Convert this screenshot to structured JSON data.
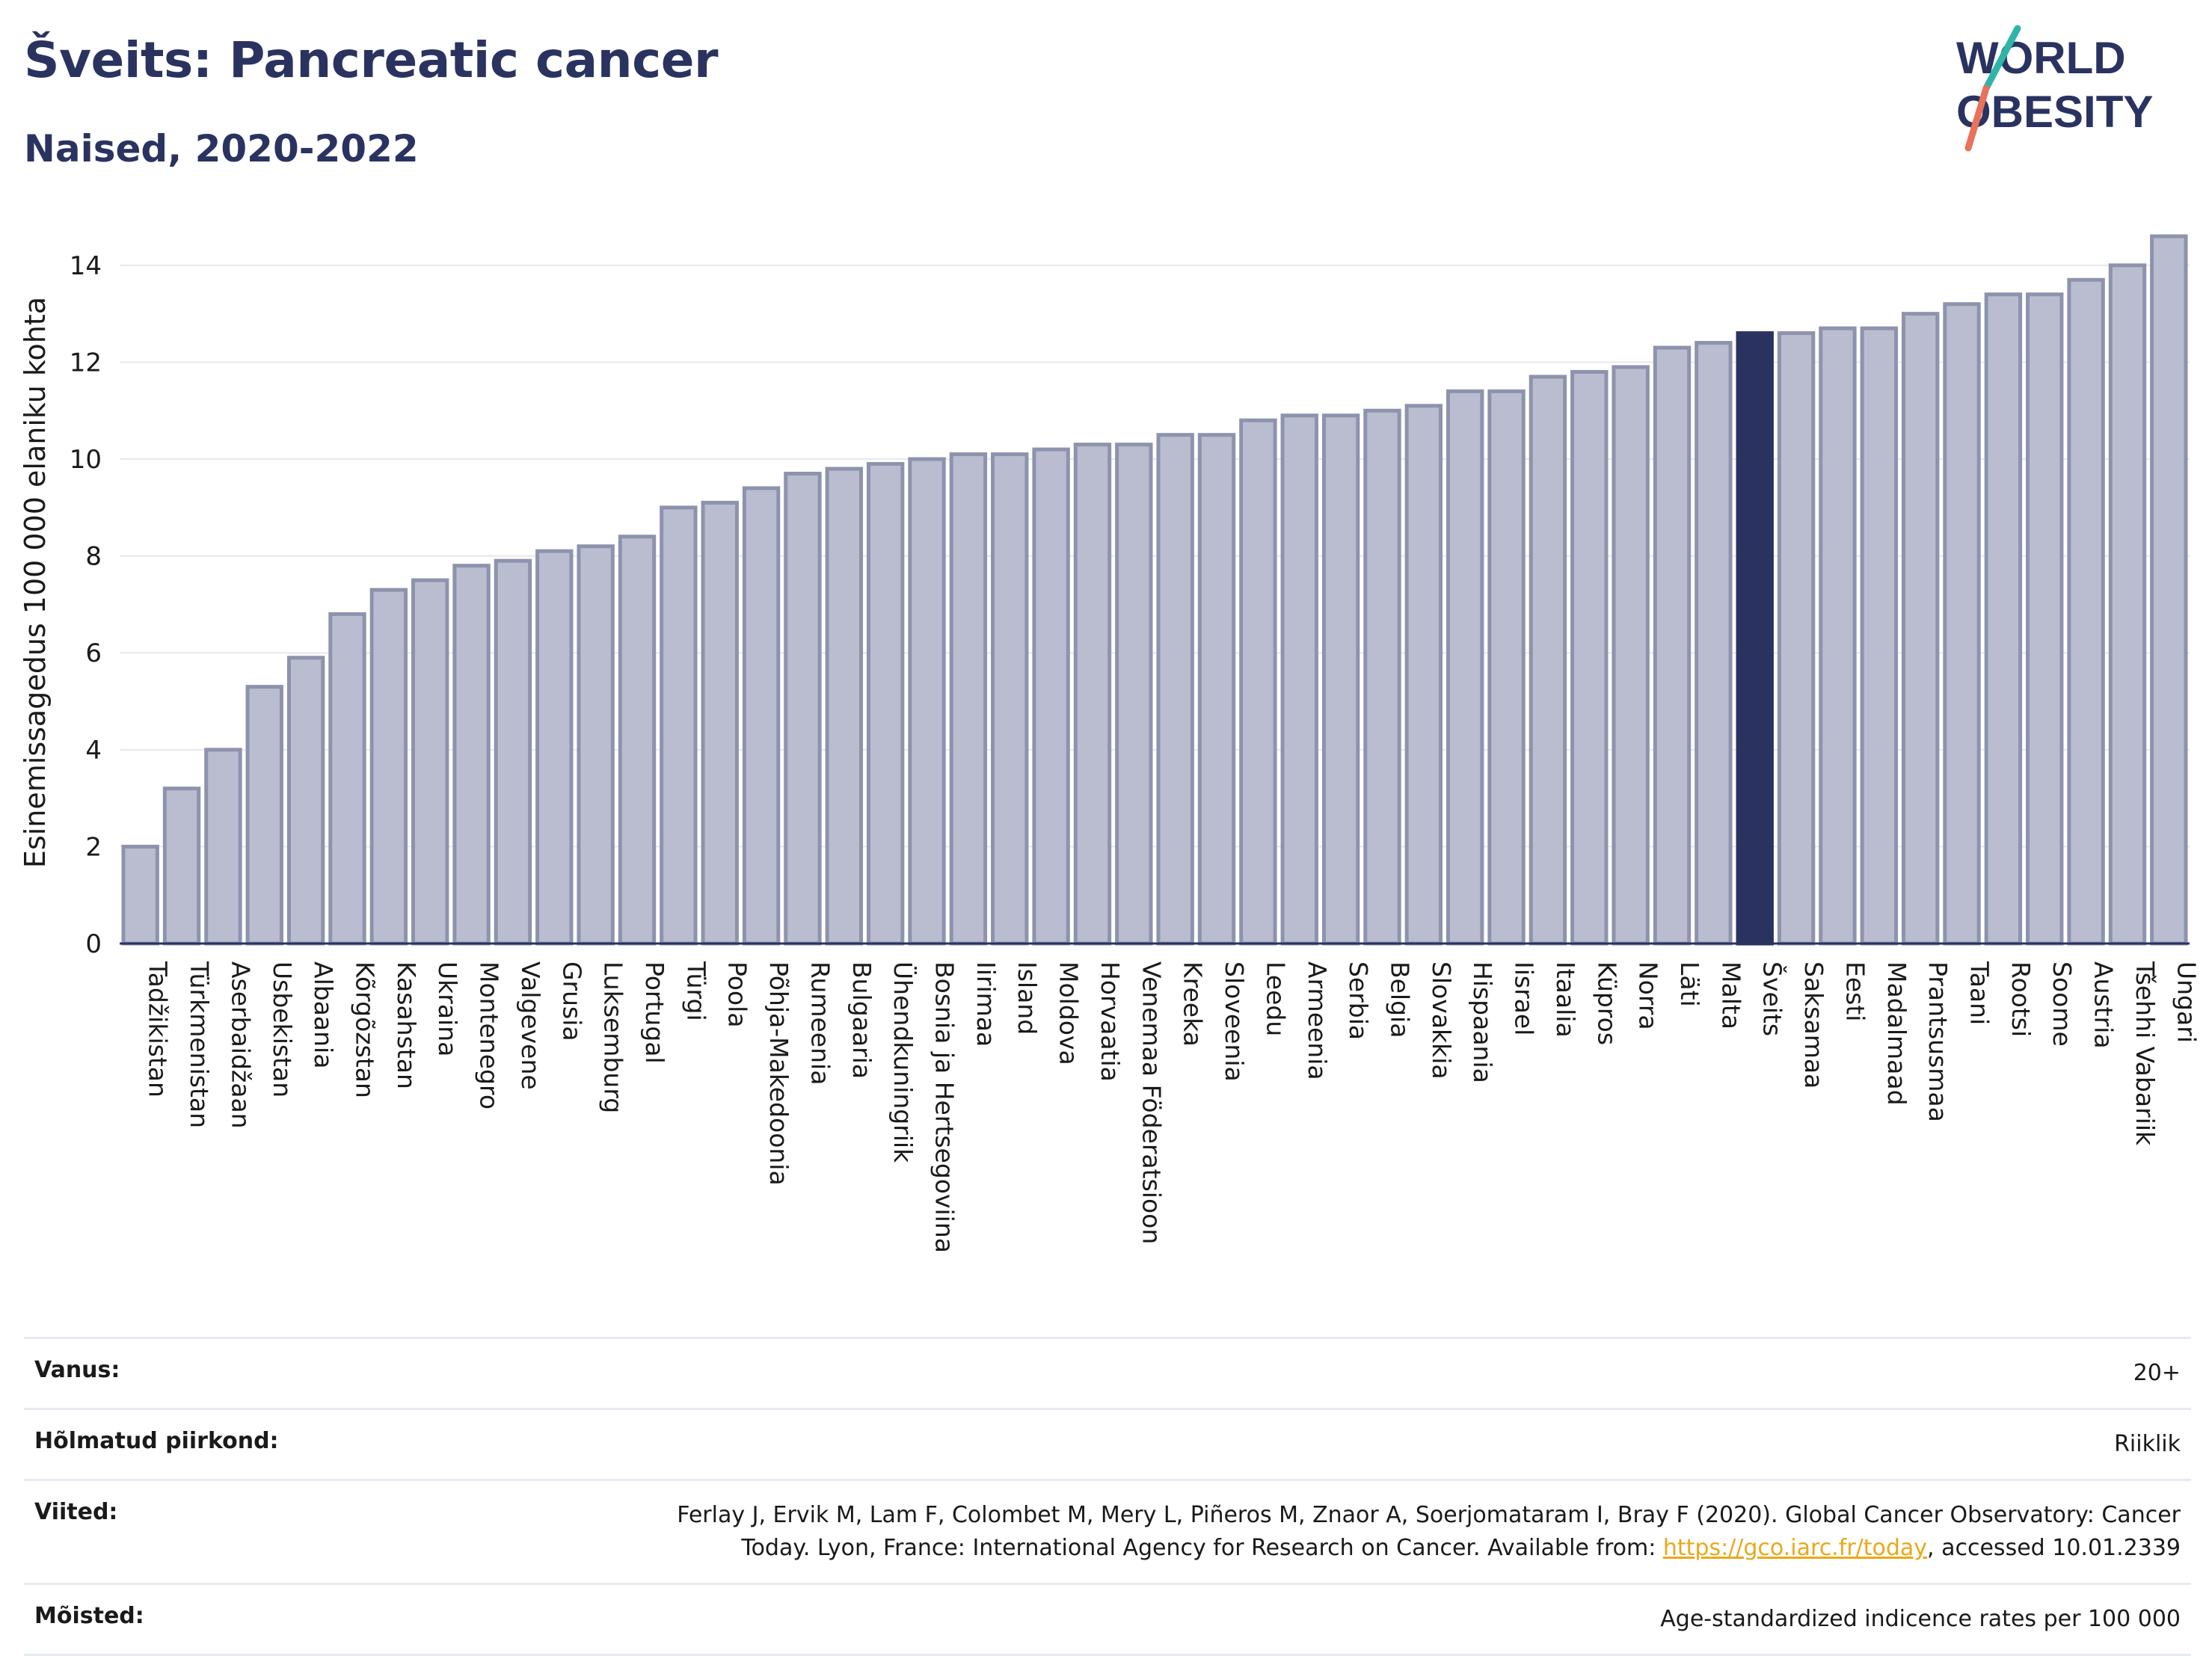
{
  "header": {
    "title": "Šveits: Pancreatic cancer",
    "subtitle": "Naised, 2020-2022"
  },
  "logo": {
    "line1": "WORLD",
    "line2": "OBESITY"
  },
  "colors": {
    "bar": "#b9bdcf",
    "bar_edge": "#8e93ad",
    "highlight": "#2a3360",
    "grid": "#e6e8ef",
    "text": "#2a3360"
  },
  "chart_data": {
    "type": "bar",
    "ylabel": "Esinemissagedus 100 000 elaniku kohta",
    "ylim": [
      0,
      14.6
    ],
    "yticks": [
      0,
      2,
      4,
      6,
      8,
      10,
      12,
      14
    ],
    "grid": true,
    "highlight": "Šveits",
    "categories": [
      "Tadžikistan",
      "Türkmenistan",
      "Aserbaidžaan",
      "Usbekistan",
      "Albaania",
      "Kõrgõzstan",
      "Kasahstan",
      "Ukraina",
      "Montenegro",
      "Valgevene",
      "Grusia",
      "Luksemburg",
      "Portugal",
      "Türgi",
      "Poola",
      "Põhja-Makedoonia",
      "Rumeenia",
      "Bulgaaria",
      "Ühendkuningriik",
      "Bosnia ja Hertsegoviina",
      "Iirimaa",
      "Island",
      "Moldova",
      "Horvaatia",
      "Venemaa Föderatsioon",
      "Kreeka",
      "Sloveenia",
      "Leedu",
      "Armeenia",
      "Serbia",
      "Belgia",
      "Slovakkia",
      "Hispaania",
      "Iisrael",
      "Itaalia",
      "Küpros",
      "Norra",
      "Läti",
      "Malta",
      "Šveits",
      "Saksamaa",
      "Eesti",
      "Madalmaad",
      "Prantsusmaa",
      "Taani",
      "Rootsi",
      "Soome",
      "Austria",
      "Tšehhi Vabariik",
      "Ungari"
    ],
    "values": [
      2.0,
      3.2,
      4.0,
      5.3,
      5.9,
      6.8,
      7.3,
      7.5,
      7.8,
      7.9,
      8.1,
      8.2,
      8.4,
      9.0,
      9.1,
      9.4,
      9.7,
      9.8,
      9.9,
      10.0,
      10.1,
      10.1,
      10.2,
      10.3,
      10.3,
      10.5,
      10.5,
      10.8,
      10.9,
      10.9,
      11.0,
      11.1,
      11.4,
      11.4,
      11.7,
      11.8,
      11.9,
      12.3,
      12.4,
      12.6,
      12.6,
      12.7,
      12.7,
      13.0,
      13.2,
      13.4,
      13.4,
      13.7,
      14.0,
      14.6
    ]
  },
  "info": {
    "rows": [
      {
        "key": "Vanus:",
        "value": "20+"
      },
      {
        "key": "Hõlmatud piirkond:",
        "value": "Riiklik"
      },
      {
        "key": "Viited:",
        "value_line1": "Ferlay J, Ervik M, Lam F, Colombet M, Mery L, Piñeros M, Znaor A, Soerjomataram I, Bray F (2020). Global Cancer Observatory: Cancer",
        "value_line2_pre": "Today. Lyon, France: International Agency for Research on Cancer. Available from: ",
        "link": "https://gco.iarc.fr/today",
        "value_line2_post": ", accessed 10.01.2339"
      },
      {
        "key": "Mõisted:",
        "value": "Age-standardized indicence rates per 100 000"
      }
    ]
  }
}
